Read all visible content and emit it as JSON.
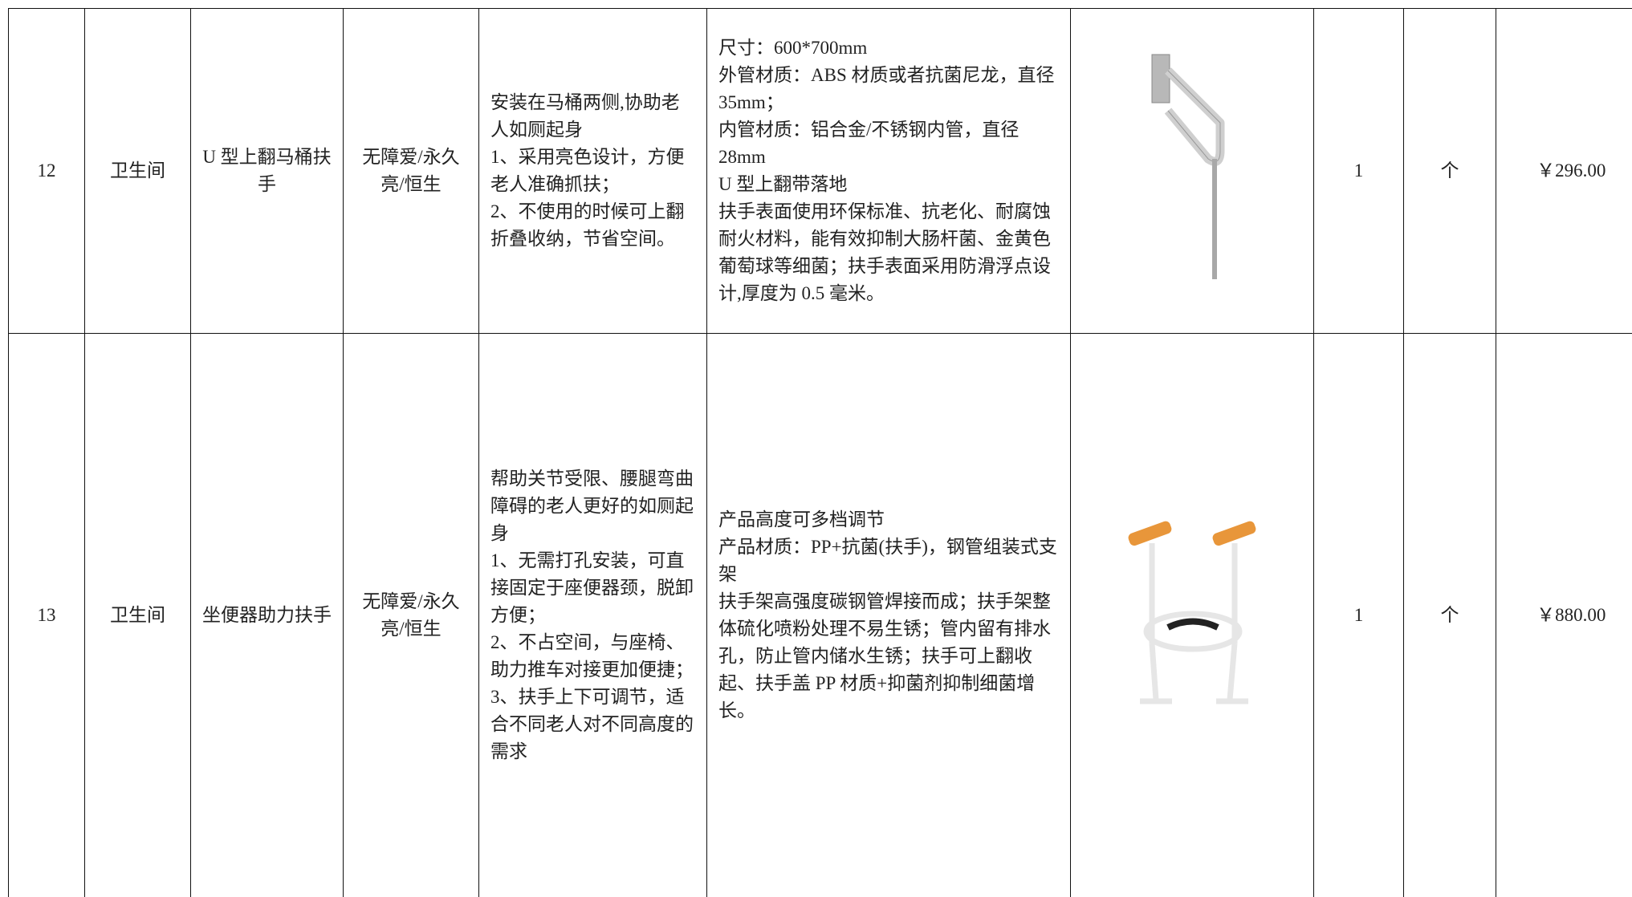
{
  "table": {
    "rows": [
      {
        "no": "12",
        "area": "卫生间",
        "name": "U 型上翻马桶扶手",
        "brand": "无障爱/永久亮/恒生",
        "desc": [
          "安装在马桶两侧,协助老人如厕起身",
          "1、采用亮色设计，方便老人准确抓扶；",
          "2、不使用的时候可上翻折叠收纳，节省空间。"
        ],
        "spec": [
          "尺寸：600*700mm",
          "外管材质：ABS 材质或者抗菌尼龙，直径 35mm；",
          "内管材质：铝合金/不锈钢内管，直径 28mm",
          "U 型上翻带落地",
          "扶手表面使用环保标准、抗老化、耐腐蚀耐火材料，能有效抑制大肠杆菌、金黄色葡萄球等细菌；扶手表面采用防滑浮点设计,厚度为 0.5 毫米。"
        ],
        "qty": "1",
        "unit": "个",
        "price": "￥296.00"
      },
      {
        "no": "13",
        "area": "卫生间",
        "name": "坐便器助力扶手",
        "brand": "无障爱/永久亮/恒生",
        "desc": [
          "帮助关节受限、腰腿弯曲障碍的老人更好的如厕起身",
          "1、无需打孔安装，可直接固定于座便器颈，脱卸方便；",
          "2、不占空间，与座椅、助力推车对接更加便捷；",
          "3、扶手上下可调节，适合不同老人对不同高度的需求"
        ],
        "spec": [
          "产品高度可多档调节",
          "产品材质：PP+抗菌(扶手)，钢管组装式支架",
          "扶手架高强度碳钢管焊接而成；扶手架整体硫化喷粉处理不易生锈；管内留有排水孔，防止管内储水生锈；扶手可上翻收起、扶手盖 PP 材质+抑菌剂抑制细菌增长。"
        ],
        "qty": "1",
        "unit": "个",
        "price": "￥880.00"
      }
    ]
  }
}
